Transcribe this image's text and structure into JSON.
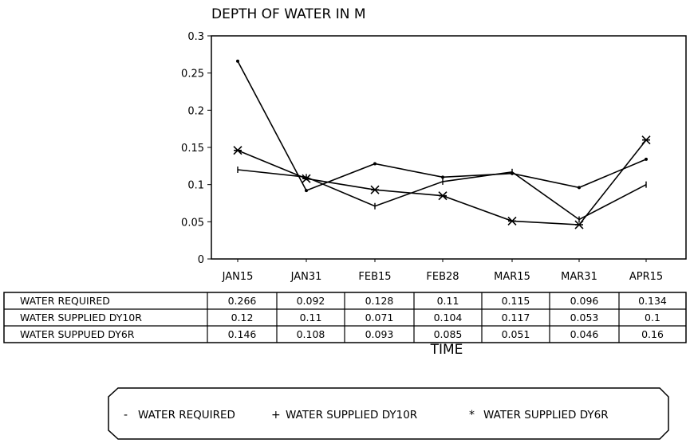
{
  "chart_data": {
    "type": "line",
    "title": "DEPTH OF WATER IN M",
    "xlabel": "TIME",
    "ylabel": "",
    "categories": [
      "JAN15",
      "JAN31",
      "FEB15",
      "FEB28",
      "MAR15",
      "MAR31",
      "APR15"
    ],
    "ylim": [
      0,
      0.3
    ],
    "yticks": [
      "0",
      "0.05",
      "0.1",
      "0.15",
      "0.2",
      "0.25",
      "0.3"
    ],
    "series": [
      {
        "name": "WATER REQUIRED",
        "legend_symbol": "-",
        "marker": "dot",
        "values": [
          0.266,
          0.092,
          0.128,
          0.11,
          0.115,
          0.096,
          0.134
        ],
        "labels": [
          "0.266",
          "0.092",
          "0.128",
          "0.11",
          "0.115",
          "0.096",
          "0.134"
        ]
      },
      {
        "name": "WATER SUPPLIED DY10R",
        "legend_name": "WATER SUPPLIED DY10R",
        "legend_symbol": "+",
        "marker": "plus",
        "values": [
          0.12,
          0.11,
          0.071,
          0.104,
          0.117,
          0.053,
          0.1
        ],
        "labels": [
          "0.12",
          "0.11",
          "0.071",
          "0.104",
          "0.117",
          "0.053",
          "0.1"
        ]
      },
      {
        "name": "WATER SUPPUED DY6R",
        "legend_name": "WATER SUPPLIED DY6R",
        "legend_symbol": "*",
        "marker": "star",
        "values": [
          0.146,
          0.108,
          0.093,
          0.085,
          0.051,
          0.046,
          0.16
        ],
        "labels": [
          "0.146",
          "0.108",
          "0.093",
          "0.085",
          "0.051",
          "0.046",
          "0.16"
        ]
      }
    ],
    "grid": false,
    "legend": "bottom"
  }
}
